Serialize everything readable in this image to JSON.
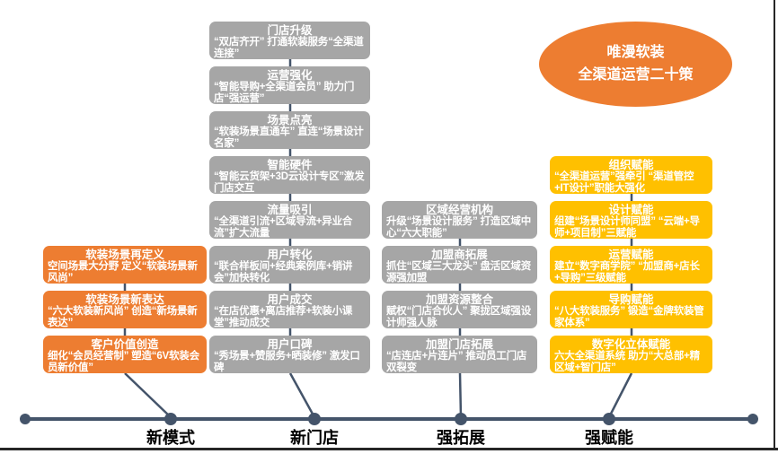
{
  "ellipse": {
    "line1": "唯漫软装",
    "line2": "全渠道运营二十策",
    "color": "#ED7D31"
  },
  "timeline": {
    "labels": [
      "新模式",
      "新门店",
      "强拓展",
      "强赋能"
    ],
    "color": "#44546A"
  },
  "columns": [
    {
      "id": "new-model",
      "stage_label": "新模式",
      "color": "#ED7D31",
      "boxes": [
        {
          "title": "软装场景再定义",
          "body": "空间场景大分野 定义“软装场景新风尚”"
        },
        {
          "title": "软装场景新表达",
          "body": "“六大软装新风尚” 创造“新场景新表达”"
        },
        {
          "title": "客户价值创造",
          "body": "细化“会员经营制” 塑造“6V软装会员新价值”"
        }
      ]
    },
    {
      "id": "new-store",
      "stage_label": "新门店",
      "color": "#A6A6A6",
      "boxes": [
        {
          "title": "门店升级",
          "body": "“双店齐开” 打通软装服务“全渠道连接”"
        },
        {
          "title": "运营强化",
          "body": "“智能导购+全渠道会员” 助力门店“强运营”"
        },
        {
          "title": "场景点亮",
          "body": "“软装场景直通车” 直连“场景设计名家”"
        },
        {
          "title": "智能硬件",
          "body": "“智能云货架+3D云设计专区”激发门店交互"
        },
        {
          "title": "流量吸引",
          "body": "“全渠道引流+区域导流+异业合流”扩大流量"
        },
        {
          "title": "用户转化",
          "body": "“联合样板间+经典案例库+销讲会”加快转化"
        },
        {
          "title": "用户成交",
          "body": "“在店优惠+离店推荐+软装小课堂”推动成交"
        },
        {
          "title": "用户口碑",
          "body": "“秀场景+赞服务+晒装修” 激发口碑"
        }
      ]
    },
    {
      "id": "expand",
      "stage_label": "强拓展",
      "color": "#A6A6A6",
      "boxes": [
        {
          "title": "区域经营机构",
          "body": "升级“场景设计服务” 打造区域中心“六大职能”"
        },
        {
          "title": "加盟商拓展",
          "body": "抓住“区域三大龙头” 盘活区域资源强加盟"
        },
        {
          "title": "加盟资源整合",
          "body": "赋权“门店合伙人” 聚拢区域强设计师强人脉"
        },
        {
          "title": "加盟门店拓展",
          "body": "“店连店+片连片” 推动员工门店双裂变"
        }
      ]
    },
    {
      "id": "empower",
      "stage_label": "强赋能",
      "color": "#FFC000",
      "boxes": [
        {
          "title": "组织赋能",
          "body": "“全渠道运营”强牵引 “渠道管控+IT设计”职能大强化"
        },
        {
          "title": "设计赋能",
          "body": "组建“场景设计师同盟” “云端+导师+项目制”三赋能"
        },
        {
          "title": "运营赋能",
          "body": "建立“数字商学院” “加盟商+店长+导购”三级赋能"
        },
        {
          "title": "导购赋能",
          "body": "“八大软装服务” 锻造“金牌软装管家体系”"
        },
        {
          "title": "数字化立体赋能",
          "body": "六大全渠道系统 助力“大总部+精区域+智门店”"
        }
      ]
    }
  ],
  "colors": {
    "connector": "#44546A",
    "gray_box": "#A6A6A6",
    "orange_box": "#ED7D31",
    "yellow_box": "#FFC000"
  }
}
